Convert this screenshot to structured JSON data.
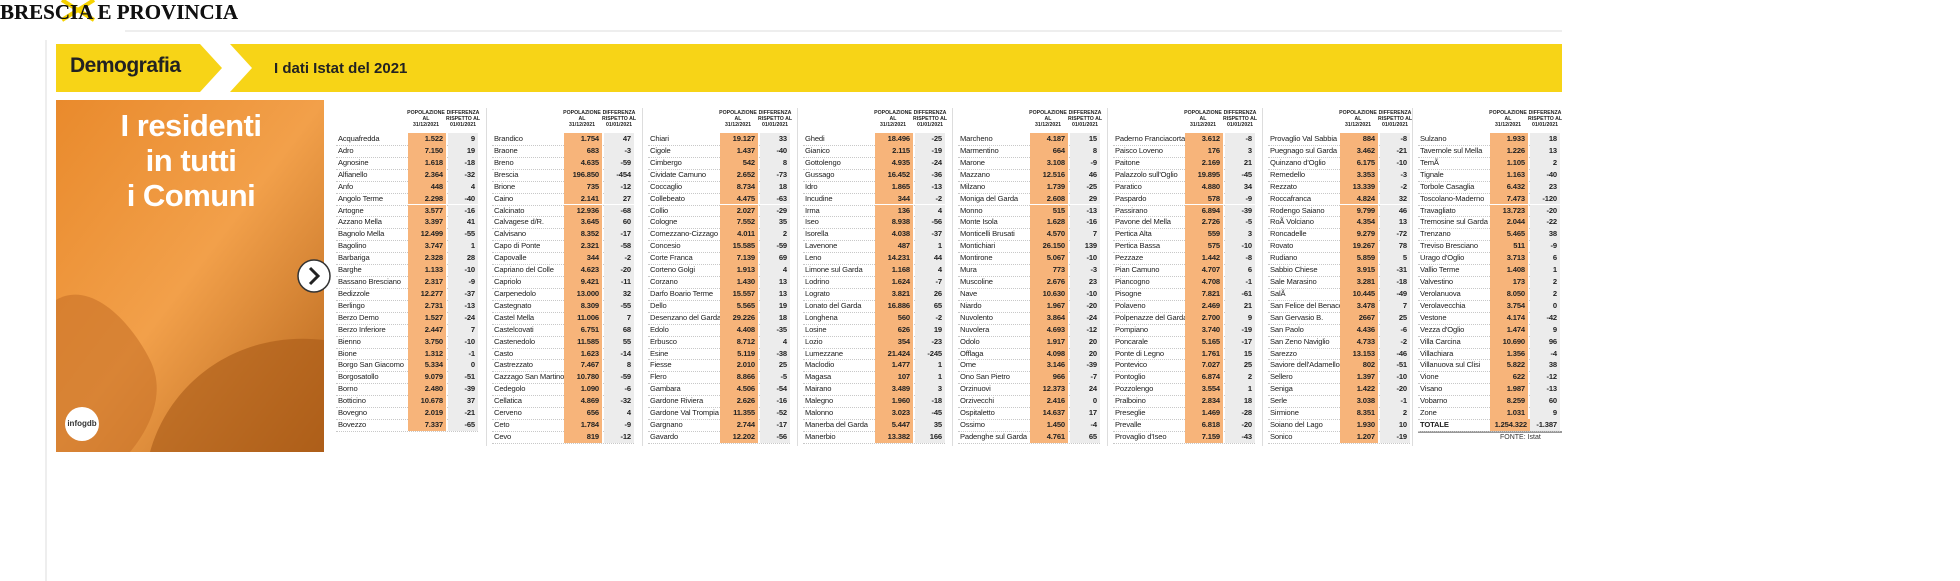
{
  "header": {
    "title_left": "BRESCIA E PROVINCIA",
    "title_right": "BRESCIA E PROVINCIA"
  },
  "banner": {
    "section": "Demografia",
    "subtitle": "I dati Istat del 2021"
  },
  "image": {
    "headline_lines": [
      "I residenti",
      "in tutti",
      "i Comuni"
    ],
    "logo": "infogdb"
  },
  "table": {
    "column_headers": {
      "population": [
        "POPOLAZIONE",
        "AL",
        "31/12/2021"
      ],
      "difference": [
        "DIFFERENZA",
        "RISPETTO AL",
        "01/01/2021"
      ]
    },
    "columns": [
      [
        [
          "Acquafredda",
          "1.522",
          "9"
        ],
        [
          "Adro",
          "7.150",
          "19"
        ],
        [
          "Agnosine",
          "1.618",
          "-18"
        ],
        [
          "Alfianello",
          "2.364",
          "-32"
        ],
        [
          "Anfo",
          "448",
          "4"
        ],
        [
          "Angolo Terme",
          "2.298",
          "-40"
        ],
        [
          "Artogne",
          "3.577",
          "-16"
        ],
        [
          "Azzano Mella",
          "3.397",
          "41"
        ],
        [
          "Bagnolo Mella",
          "12.499",
          "-55"
        ],
        [
          "Bagolino",
          "3.747",
          "1"
        ],
        [
          "Barbariga",
          "2.328",
          "28"
        ],
        [
          "Barghe",
          "1.133",
          "-10"
        ],
        [
          "Bassano Bresciano",
          "2.317",
          "-9"
        ],
        [
          "Bedizzole",
          "12.277",
          "-37"
        ],
        [
          "Berlingo",
          "2.731",
          "-13"
        ],
        [
          "Berzo Demo",
          "1.527",
          "-24"
        ],
        [
          "Berzo Inferiore",
          "2.447",
          "7"
        ],
        [
          "Bienno",
          "3.750",
          "-10"
        ],
        [
          "Bione",
          "1.312",
          "-1"
        ],
        [
          "Borgo San Giacomo",
          "5.334",
          "0"
        ],
        [
          "Borgosatollo",
          "9.079",
          "-51"
        ],
        [
          "Borno",
          "2.480",
          "-39"
        ],
        [
          "Botticino",
          "10.678",
          "37"
        ],
        [
          "Bovegno",
          "2.019",
          "-21"
        ],
        [
          "Bovezzo",
          "7.337",
          "-65"
        ]
      ],
      [
        [
          "Brandico",
          "1.754",
          "47"
        ],
        [
          "Braone",
          "683",
          "-3"
        ],
        [
          "Breno",
          "4.635",
          "-59"
        ],
        [
          "Brescia",
          "196.850",
          "-454"
        ],
        [
          "Brione",
          "735",
          "-12"
        ],
        [
          "Caino",
          "2.141",
          "27"
        ],
        [
          "Calcinato",
          "12.936",
          "-68"
        ],
        [
          "Calvagese d/R.",
          "3.645",
          "60"
        ],
        [
          "Calvisano",
          "8.352",
          "-17"
        ],
        [
          "Capo di Ponte",
          "2.321",
          "-58"
        ],
        [
          "Capovalle",
          "344",
          "-2"
        ],
        [
          "Capriano del Colle",
          "4.623",
          "-20"
        ],
        [
          "Capriolo",
          "9.421",
          "-11"
        ],
        [
          "Carpenedolo",
          "13.000",
          "32"
        ],
        [
          "Castegnato",
          "8.309",
          "-55"
        ],
        [
          "Castel Mella",
          "11.006",
          "7"
        ],
        [
          "Castelcovati",
          "6.751",
          "68"
        ],
        [
          "Castenedolo",
          "11.585",
          "55"
        ],
        [
          "Casto",
          "1.623",
          "-14"
        ],
        [
          "Castrezzato",
          "7.467",
          "8"
        ],
        [
          "Cazzago San Martino",
          "10.780",
          "-59"
        ],
        [
          "Cedegolo",
          "1.090",
          "-6"
        ],
        [
          "Cellatica",
          "4.869",
          "-32"
        ],
        [
          "Cerveno",
          "656",
          "4"
        ],
        [
          "Ceto",
          "1.784",
          "-9"
        ],
        [
          "Cevo",
          "819",
          "-12"
        ]
      ],
      [
        [
          "Chiari",
          "19.127",
          "33"
        ],
        [
          "Cigole",
          "1.437",
          "-40"
        ],
        [
          "Cimbergo",
          "542",
          "8"
        ],
        [
          "Cividate Camuno",
          "2.652",
          "-73"
        ],
        [
          "Coccaglio",
          "8.734",
          "18"
        ],
        [
          "Collebeato",
          "4.475",
          "-63"
        ],
        [
          "Collio",
          "2.027",
          "-29"
        ],
        [
          "Cologne",
          "7.552",
          "35"
        ],
        [
          "Comezzano-Cizzago",
          "4.011",
          "2"
        ],
        [
          "Concesio",
          "15.585",
          "-59"
        ],
        [
          "Corte Franca",
          "7.139",
          "69"
        ],
        [
          "Corteno Golgi",
          "1.913",
          "4"
        ],
        [
          "Corzano",
          "1.430",
          "13"
        ],
        [
          "Darfo Boario Terme",
          "15.557",
          "13"
        ],
        [
          "Dello",
          "5.565",
          "19"
        ],
        [
          "Desenzano del Garda",
          "29.226",
          "18"
        ],
        [
          "Edolo",
          "4.408",
          "-35"
        ],
        [
          "Erbusco",
          "8.712",
          "4"
        ],
        [
          "Esine",
          "5.119",
          "-38"
        ],
        [
          "Fiesse",
          "2.010",
          "25"
        ],
        [
          "Flero",
          "8.866",
          "-5"
        ],
        [
          "Gambara",
          "4.506",
          "-54"
        ],
        [
          "Gardone Riviera",
          "2.626",
          "-16"
        ],
        [
          "Gardone Val Trompia",
          "11.355",
          "-52"
        ],
        [
          "Gargnano",
          "2.744",
          "-17"
        ],
        [
          "Gavardo",
          "12.202",
          "-56"
        ]
      ],
      [
        [
          "Ghedi",
          "18.496",
          "-25"
        ],
        [
          "Gianico",
          "2.115",
          "-19"
        ],
        [
          "Gottolengo",
          "4.935",
          "-24"
        ],
        [
          "Gussago",
          "16.452",
          "-36"
        ],
        [
          "Idro",
          "1.865",
          "-13"
        ],
        [
          "Incudine",
          "344",
          "-2"
        ],
        [
          "Irma",
          "136",
          "4"
        ],
        [
          "Iseo",
          "8.938",
          "-56"
        ],
        [
          "Isorella",
          "4.038",
          "-37"
        ],
        [
          "Lavenone",
          "487",
          "1"
        ],
        [
          "Leno",
          "14.231",
          "44"
        ],
        [
          "Limone sul Garda",
          "1.168",
          "4"
        ],
        [
          "Lodrino",
          "1.624",
          "-7"
        ],
        [
          "Lograto",
          "3.821",
          "26"
        ],
        [
          "Lonato del Garda",
          "16.886",
          "65"
        ],
        [
          "Longhena",
          "560",
          "-2"
        ],
        [
          "Losine",
          "626",
          "19"
        ],
        [
          "Lozio",
          "354",
          "-23"
        ],
        [
          "Lumezzane",
          "21.424",
          "-245"
        ],
        [
          "Maclodio",
          "1.477",
          "1"
        ],
        [
          "Magasa",
          "107",
          "1"
        ],
        [
          "Mairano",
          "3.489",
          "3"
        ],
        [
          "Malegno",
          "1.960",
          "-18"
        ],
        [
          "Malonno",
          "3.023",
          "-45"
        ],
        [
          "Manerba del Garda",
          "5.447",
          "35"
        ],
        [
          "Manerbio",
          "13.382",
          "166"
        ]
      ],
      [
        [
          "Marcheno",
          "4.187",
          "15"
        ],
        [
          "Marmentino",
          "664",
          "8"
        ],
        [
          "Marone",
          "3.108",
          "-9"
        ],
        [
          "Mazzano",
          "12.516",
          "46"
        ],
        [
          "Milzano",
          "1.739",
          "-25"
        ],
        [
          "Moniga del Garda",
          "2.608",
          "29"
        ],
        [
          "Monno",
          "515",
          "-13"
        ],
        [
          "Monte Isola",
          "1.628",
          "-16"
        ],
        [
          "Monticelli Brusati",
          "4.570",
          "7"
        ],
        [
          "Montichiari",
          "26.150",
          "139"
        ],
        [
          "Montirone",
          "5.067",
          "-10"
        ],
        [
          "Mura",
          "773",
          "-3"
        ],
        [
          "Muscoline",
          "2.676",
          "23"
        ],
        [
          "Nave",
          "10.630",
          "-10"
        ],
        [
          "Niardo",
          "1.967",
          "-20"
        ],
        [
          "Nuvolento",
          "3.864",
          "-24"
        ],
        [
          "Nuvolera",
          "4.693",
          "-12"
        ],
        [
          "Odolo",
          "1.917",
          "20"
        ],
        [
          "Offlaga",
          "4.098",
          "20"
        ],
        [
          "Ome",
          "3.146",
          "-39"
        ],
        [
          "Ono San Pietro",
          "966",
          "-7"
        ],
        [
          "Orzinuovi",
          "12.373",
          "24"
        ],
        [
          "Orzivecchi",
          "2.416",
          "0"
        ],
        [
          "Ospitaletto",
          "14.637",
          "17"
        ],
        [
          "Ossimo",
          "1.450",
          "-4"
        ],
        [
          "Padenghe sul Garda",
          "4.761",
          "65"
        ]
      ],
      [
        [
          "Paderno Franciacorta",
          "3.612",
          "-8"
        ],
        [
          "Paisco Loveno",
          "176",
          "3"
        ],
        [
          "Paitone",
          "2.169",
          "21"
        ],
        [
          "Palazzolo sull'Oglio",
          "19.895",
          "-45"
        ],
        [
          "Paratico",
          "4.880",
          "34"
        ],
        [
          "Paspardo",
          "578",
          "-9"
        ],
        [
          "Passirano",
          "6.894",
          "-39"
        ],
        [
          "Pavone del Mella",
          "2.726",
          "-5"
        ],
        [
          "Pertica Alta",
          "559",
          "3"
        ],
        [
          "Pertica Bassa",
          "575",
          "-10"
        ],
        [
          "Pezzaze",
          "1.442",
          "-8"
        ],
        [
          "Pian Camuno",
          "4.707",
          "6"
        ],
        [
          "Piancogno",
          "4.708",
          "-1"
        ],
        [
          "Pisogne",
          "7.821",
          "-61"
        ],
        [
          "Polaveno",
          "2.469",
          "21"
        ],
        [
          "Polpenazze del Garda",
          "2.700",
          "9"
        ],
        [
          "Pompiano",
          "3.740",
          "-19"
        ],
        [
          "Poncarale",
          "5.165",
          "-17"
        ],
        [
          "Ponte di Legno",
          "1.761",
          "15"
        ],
        [
          "Pontevico",
          "7.027",
          "25"
        ],
        [
          "Pontoglio",
          "6.874",
          "2"
        ],
        [
          "Pozzolengo",
          "3.554",
          "1"
        ],
        [
          "Pralboino",
          "2.834",
          "18"
        ],
        [
          "Preseglie",
          "1.469",
          "-28"
        ],
        [
          "Prevalle",
          "6.818",
          "-20"
        ],
        [
          "Provaglio d'Iseo",
          "7.159",
          "-43"
        ]
      ],
      [
        [
          "Provaglio Val Sabbia",
          "884",
          "-8"
        ],
        [
          "Puegnago sul Garda",
          "3.462",
          "-21"
        ],
        [
          "Quinzano d'Oglio",
          "6.175",
          "-10"
        ],
        [
          "Remedello",
          "3.353",
          "-3"
        ],
        [
          "Rezzato",
          "13.339",
          "-2"
        ],
        [
          "Roccafranca",
          "4.824",
          "32"
        ],
        [
          "Rodengo Saiano",
          "9.799",
          "46"
        ],
        [
          "RoÃ  Volciano",
          "4.354",
          "13"
        ],
        [
          "Roncadelle",
          "9.279",
          "-72"
        ],
        [
          "Rovato",
          "19.267",
          "78"
        ],
        [
          "Rudiano",
          "5.859",
          "5"
        ],
        [
          "Sabbio Chiese",
          "3.915",
          "-31"
        ],
        [
          "Sale Marasino",
          "3.281",
          "-18"
        ],
        [
          "SalÃ",
          "10.445",
          "-49"
        ],
        [
          "San Felice del Benaco",
          "3.478",
          "7"
        ],
        [
          "San Gervasio B.",
          "2667",
          "25"
        ],
        [
          "San Paolo",
          "4.436",
          "-6"
        ],
        [
          "San Zeno Naviglio",
          "4.733",
          "-2"
        ],
        [
          "Sarezzo",
          "13.153",
          "-46"
        ],
        [
          "Saviore dell'Adamello",
          "802",
          "-51"
        ],
        [
          "Sellero",
          "1.397",
          "-10"
        ],
        [
          "Seniga",
          "1.422",
          "-20"
        ],
        [
          "Serle",
          "3.038",
          "-1"
        ],
        [
          "Sirmione",
          "8.351",
          "2"
        ],
        [
          "Soiano del Lago",
          "1.930",
          "10"
        ],
        [
          "Sonico",
          "1.207",
          "-19"
        ]
      ],
      [
        [
          "Sulzano",
          "1.933",
          "18"
        ],
        [
          "Tavernole sul Mella",
          "1.226",
          "13"
        ],
        [
          "TemÃ",
          "1.105",
          "2"
        ],
        [
          "Tignale",
          "1.163",
          "-40"
        ],
        [
          "Torbole Casaglia",
          "6.432",
          "23"
        ],
        [
          "Toscolano-Maderno",
          "7.473",
          "-120"
        ],
        [
          "Travagliato",
          "13.723",
          "-20"
        ],
        [
          "Tremosine sul Garda",
          "2.044",
          "-22"
        ],
        [
          "Trenzano",
          "5.465",
          "38"
        ],
        [
          "Treviso Bresciano",
          "511",
          "-9"
        ],
        [
          "Urago d'Oglio",
          "3.713",
          "6"
        ],
        [
          "Vallio Terme",
          "1.408",
          "1"
        ],
        [
          "Valvestino",
          "173",
          "2"
        ],
        [
          "Verolanuova",
          "8.050",
          "2"
        ],
        [
          "Verolavecchia",
          "3.754",
          "0"
        ],
        [
          "Vestone",
          "4.174",
          "-42"
        ],
        [
          "Vezza d'Oglio",
          "1.474",
          "9"
        ],
        [
          "Villa Carcina",
          "10.690",
          "96"
        ],
        [
          "Villachiara",
          "1.356",
          "-4"
        ],
        [
          "Villanuova sul Clisi",
          "5.822",
          "38"
        ],
        [
          "Vione",
          "622",
          "-12"
        ],
        [
          "Visano",
          "1.987",
          "-13"
        ],
        [
          "Vobarno",
          "8.259",
          "60"
        ],
        [
          "Zone",
          "1.031",
          "9"
        ]
      ]
    ],
    "total": [
      "TOTALE",
      "1.254.322",
      "-1.387"
    ],
    "source": "FONTE: Istat"
  }
}
